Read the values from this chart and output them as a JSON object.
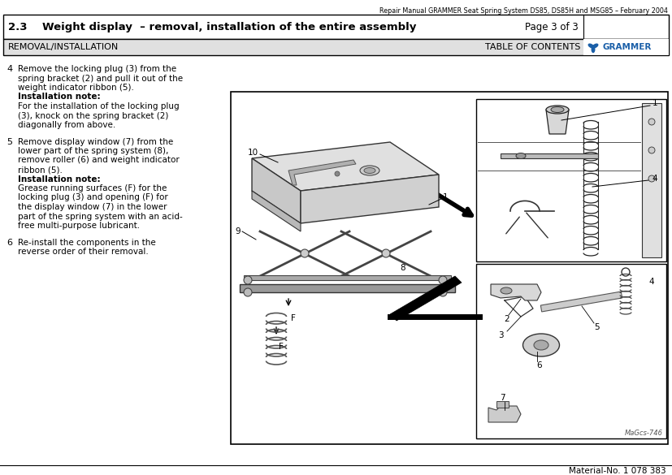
{
  "header_top_text": "Repair Manual GRAMMER Seat Spring System DS85, DS85H and MSG85 – February 2004",
  "title_left": "2.3    Weight display  – removal, installation of the entire assembly",
  "title_right": "Page 3 of 3",
  "subtitle_left": "REMOVAL/INSTALLATION",
  "subtitle_right": "TABLE OF CONTENTS",
  "grammer_text": "GRAMMER",
  "footer_text": "Material-No. 1 078 383",
  "bg_color": "#ffffff",
  "text_color": "#000000",
  "grammer_color": "#1a5fa8",
  "diagram_note": "MaGcs-746",
  "body_items": [
    {
      "num": "4",
      "lines": [
        [
          "n",
          "Remove the locking plug (3) from the"
        ],
        [
          "n",
          "spring bracket (2) and pull it out of the"
        ],
        [
          "n",
          "weight indicator ribbon (5)."
        ],
        [
          "b",
          "Installation note:"
        ],
        [
          "n",
          "For the installation of the locking plug"
        ],
        [
          "n",
          "(3), knock on the spring bracket (2)"
        ],
        [
          "n",
          "diagonally from above."
        ]
      ]
    },
    {
      "num": "5",
      "lines": [
        [
          "n",
          "Remove display window (7) from the"
        ],
        [
          "n",
          "lower part of the spring system (8),"
        ],
        [
          "n",
          "remove roller (6) and weight indicator"
        ],
        [
          "n",
          "ribbon (5)."
        ],
        [
          "b",
          "Installation note:"
        ],
        [
          "n",
          "Grease running surfaces (F) for the"
        ],
        [
          "n",
          "locking plug (3) and opening (F) for"
        ],
        [
          "n",
          "the display window (7) in the lower"
        ],
        [
          "n",
          "part of the spring system with an acid-"
        ],
        [
          "n",
          "free multi-purpose lubricant."
        ]
      ]
    },
    {
      "num": "6",
      "lines": [
        [
          "n",
          "Re-install the components in the"
        ],
        [
          "n",
          "reverse order of their removal."
        ]
      ]
    }
  ]
}
